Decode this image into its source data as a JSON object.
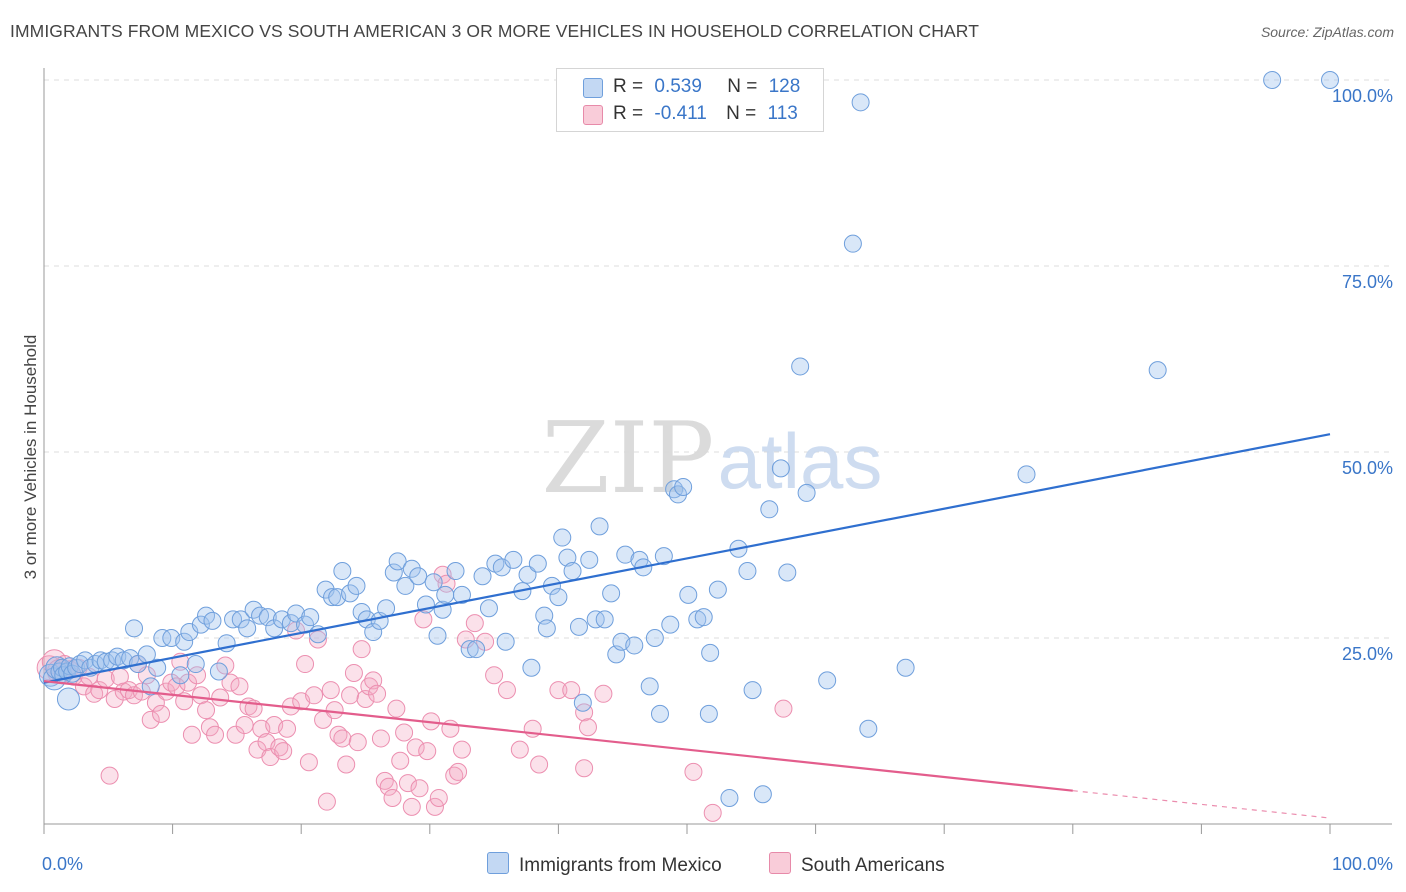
{
  "title": "IMMIGRANTS FROM MEXICO VS SOUTH AMERICAN 3 OR MORE VEHICLES IN HOUSEHOLD CORRELATION CHART",
  "source": "Source: ZipAtlas.com",
  "watermark": {
    "zip": "ZIP",
    "atlas": "atlas"
  },
  "colors": {
    "blue": "#3a76c8",
    "pink": "#e35d8c",
    "blue_fill": "#aac8ee",
    "pink_fill": "#f5b5c8"
  },
  "legend": {
    "rows": [
      {
        "r_label": "R =",
        "r_value": "0.539",
        "n_label": "N =",
        "n_value": "128"
      },
      {
        "r_label": "R =",
        "r_value": "-0.411",
        "n_label": "N =",
        "n_value": "113"
      }
    ]
  },
  "bottom_legend": [
    "Immigrants from Mexico",
    "South Americans"
  ],
  "chart_data": {
    "type": "scatter",
    "title": "IMMIGRANTS FROM MEXICO VS SOUTH AMERICAN 3 OR MORE VEHICLES IN HOUSEHOLD CORRELATION CHART",
    "xlabel": "",
    "ylabel": "3 or more Vehicles in Household",
    "xlim": [
      0,
      100
    ],
    "ylim": [
      0,
      102
    ],
    "x_tick_labels": [
      "0.0%",
      "100.0%"
    ],
    "y_ticks": [
      25,
      50,
      75,
      100
    ],
    "y_tick_labels": [
      "25.0%",
      "50.0%",
      "75.0%",
      "100.0%"
    ],
    "grid": "horizontal dashed",
    "legend_position": "top-center",
    "series": [
      {
        "name": "Immigrants from Mexico",
        "color": "#3a76c8",
        "r": 0.539,
        "n": 128,
        "trend": {
          "x": [
            0,
            100
          ],
          "y": [
            19.0,
            52.4
          ],
          "dash_from": null
        },
        "points": [
          [
            0.5,
            20.0
          ],
          [
            0.8,
            19.5
          ],
          [
            1.0,
            21.0
          ],
          [
            1.2,
            20.5
          ],
          [
            1.4,
            21.0
          ],
          [
            1.5,
            20.0
          ],
          [
            1.8,
            20.5
          ],
          [
            2.0,
            21.2
          ],
          [
            2.2,
            20.2
          ],
          [
            2.5,
            21.0
          ],
          [
            1.9,
            16.8
          ],
          [
            2.8,
            21.5
          ],
          [
            3.2,
            22.0
          ],
          [
            3.6,
            21.0
          ],
          [
            4.0,
            21.5
          ],
          [
            4.4,
            22.0
          ],
          [
            4.8,
            21.8
          ],
          [
            5.3,
            22.0
          ],
          [
            5.7,
            22.5
          ],
          [
            6.2,
            22.0
          ],
          [
            6.7,
            22.3
          ],
          [
            7.0,
            26.3
          ],
          [
            7.3,
            21.5
          ],
          [
            8.0,
            22.8
          ],
          [
            8.3,
            18.5
          ],
          [
            8.8,
            21.0
          ],
          [
            9.2,
            25.0
          ],
          [
            9.9,
            25.0
          ],
          [
            10.6,
            20.0
          ],
          [
            10.9,
            24.5
          ],
          [
            11.3,
            25.8
          ],
          [
            11.8,
            21.5
          ],
          [
            12.2,
            26.8
          ],
          [
            12.6,
            28.0
          ],
          [
            13.1,
            27.3
          ],
          [
            13.6,
            20.5
          ],
          [
            14.2,
            24.3
          ],
          [
            14.7,
            27.5
          ],
          [
            15.3,
            27.5
          ],
          [
            15.8,
            26.3
          ],
          [
            16.3,
            28.8
          ],
          [
            16.8,
            28.0
          ],
          [
            17.4,
            27.8
          ],
          [
            17.9,
            26.3
          ],
          [
            18.5,
            27.5
          ],
          [
            19.2,
            27.0
          ],
          [
            19.6,
            28.3
          ],
          [
            20.3,
            26.8
          ],
          [
            20.7,
            27.8
          ],
          [
            21.3,
            25.5
          ],
          [
            21.9,
            31.5
          ],
          [
            22.4,
            30.5
          ],
          [
            22.8,
            30.5
          ],
          [
            23.2,
            34.0
          ],
          [
            23.8,
            31.0
          ],
          [
            24.3,
            32.0
          ],
          [
            24.7,
            28.5
          ],
          [
            25.1,
            27.5
          ],
          [
            25.6,
            25.8
          ],
          [
            26.1,
            27.3
          ],
          [
            26.6,
            29.0
          ],
          [
            27.2,
            33.8
          ],
          [
            27.5,
            35.3
          ],
          [
            28.1,
            32.0
          ],
          [
            28.6,
            34.3
          ],
          [
            29.1,
            33.3
          ],
          [
            29.7,
            29.5
          ],
          [
            30.3,
            32.5
          ],
          [
            30.6,
            25.3
          ],
          [
            31.0,
            28.8
          ],
          [
            31.2,
            30.8
          ],
          [
            32.0,
            34.0
          ],
          [
            32.5,
            30.8
          ],
          [
            33.1,
            23.5
          ],
          [
            33.6,
            23.5
          ],
          [
            34.1,
            33.3
          ],
          [
            34.6,
            29.0
          ],
          [
            35.1,
            35.0
          ],
          [
            35.6,
            34.5
          ],
          [
            35.9,
            24.5
          ],
          [
            36.5,
            35.5
          ],
          [
            37.2,
            31.3
          ],
          [
            37.6,
            33.5
          ],
          [
            37.9,
            21.0
          ],
          [
            38.4,
            35.0
          ],
          [
            38.9,
            28.0
          ],
          [
            39.1,
            26.3
          ],
          [
            39.5,
            32.0
          ],
          [
            40.0,
            30.5
          ],
          [
            40.3,
            38.5
          ],
          [
            40.7,
            35.8
          ],
          [
            41.1,
            34.0
          ],
          [
            41.6,
            26.5
          ],
          [
            41.9,
            16.3
          ],
          [
            42.4,
            35.5
          ],
          [
            42.9,
            27.5
          ],
          [
            43.2,
            40.0
          ],
          [
            43.6,
            27.5
          ],
          [
            44.1,
            31.0
          ],
          [
            44.5,
            22.8
          ],
          [
            44.9,
            24.5
          ],
          [
            45.2,
            36.2
          ],
          [
            45.9,
            24.0
          ],
          [
            46.3,
            35.5
          ],
          [
            46.6,
            34.5
          ],
          [
            47.1,
            18.5
          ],
          [
            47.5,
            25.0
          ],
          [
            47.9,
            14.8
          ],
          [
            48.2,
            36.0
          ],
          [
            48.7,
            26.8
          ],
          [
            49.0,
            45.0
          ],
          [
            49.3,
            44.3
          ],
          [
            49.7,
            45.3
          ],
          [
            50.1,
            30.8
          ],
          [
            50.8,
            27.5
          ],
          [
            51.3,
            27.8
          ],
          [
            51.7,
            14.8
          ],
          [
            51.8,
            23.0
          ],
          [
            52.4,
            31.5
          ],
          [
            53.3,
            3.5
          ],
          [
            54.0,
            37.0
          ],
          [
            54.7,
            34.0
          ],
          [
            55.1,
            18.0
          ],
          [
            55.9,
            4.0
          ],
          [
            56.4,
            42.3
          ],
          [
            57.3,
            47.8
          ],
          [
            57.8,
            33.8
          ],
          [
            58.8,
            61.5
          ],
          [
            59.3,
            44.5
          ],
          [
            60.9,
            19.3
          ],
          [
            62.9,
            78.0
          ],
          [
            67.0,
            21.0
          ],
          [
            76.4,
            47.0
          ],
          [
            86.6,
            61.0
          ],
          [
            64.1,
            12.8
          ],
          [
            95.5,
            100.0
          ],
          [
            100.0,
            100.0
          ],
          [
            63.5,
            97.0
          ]
        ],
        "point_sizes_note": "first points near x≈0 are larger bubbles"
      },
      {
        "name": "South Americans",
        "color": "#e35d8c",
        "r": -0.411,
        "n": 113,
        "trend": {
          "x": [
            0,
            100
          ],
          "y": [
            19.2,
            0.8
          ],
          "dash_from": 80
        },
        "points": [
          [
            0.4,
            21.0
          ],
          [
            0.8,
            21.8
          ],
          [
            1.2,
            20.5
          ],
          [
            1.6,
            21.5
          ],
          [
            2.0,
            20.8
          ],
          [
            2.3,
            19.8
          ],
          [
            2.7,
            21.0
          ],
          [
            3.1,
            18.5
          ],
          [
            3.5,
            19.8
          ],
          [
            3.9,
            17.5
          ],
          [
            4.3,
            18.0
          ],
          [
            4.8,
            19.5
          ],
          [
            5.1,
            6.5
          ],
          [
            5.5,
            16.8
          ],
          [
            5.9,
            19.8
          ],
          [
            6.2,
            17.8
          ],
          [
            6.6,
            18.0
          ],
          [
            7.0,
            17.3
          ],
          [
            7.3,
            21.5
          ],
          [
            7.6,
            17.8
          ],
          [
            8.0,
            20.0
          ],
          [
            8.3,
            14.0
          ],
          [
            8.7,
            16.3
          ],
          [
            9.1,
            14.8
          ],
          [
            9.5,
            17.8
          ],
          [
            9.9,
            19.0
          ],
          [
            10.3,
            18.5
          ],
          [
            10.6,
            21.8
          ],
          [
            10.9,
            16.5
          ],
          [
            11.2,
            19.0
          ],
          [
            11.5,
            12.0
          ],
          [
            11.9,
            20.0
          ],
          [
            12.2,
            17.3
          ],
          [
            12.6,
            15.3
          ],
          [
            12.9,
            13.0
          ],
          [
            13.3,
            12.0
          ],
          [
            13.7,
            17.0
          ],
          [
            14.1,
            21.3
          ],
          [
            14.5,
            19.0
          ],
          [
            14.9,
            12.0
          ],
          [
            15.2,
            18.5
          ],
          [
            15.6,
            13.3
          ],
          [
            15.9,
            15.8
          ],
          [
            16.3,
            15.5
          ],
          [
            16.6,
            10.0
          ],
          [
            16.9,
            12.8
          ],
          [
            17.3,
            11.0
          ],
          [
            17.6,
            9.0
          ],
          [
            17.9,
            13.3
          ],
          [
            18.3,
            10.3
          ],
          [
            18.6,
            9.8
          ],
          [
            18.9,
            12.8
          ],
          [
            19.2,
            15.8
          ],
          [
            19.6,
            26.0
          ],
          [
            20.0,
            16.5
          ],
          [
            20.3,
            21.5
          ],
          [
            20.6,
            8.3
          ],
          [
            21.0,
            17.3
          ],
          [
            21.3,
            24.8
          ],
          [
            21.7,
            14.0
          ],
          [
            22.0,
            3.0
          ],
          [
            22.3,
            18.0
          ],
          [
            22.6,
            15.3
          ],
          [
            22.9,
            12.0
          ],
          [
            23.2,
            11.5
          ],
          [
            23.5,
            8.0
          ],
          [
            23.8,
            17.3
          ],
          [
            24.1,
            20.3
          ],
          [
            24.4,
            11.0
          ],
          [
            24.7,
            23.5
          ],
          [
            25.0,
            16.8
          ],
          [
            25.3,
            18.5
          ],
          [
            25.6,
            19.3
          ],
          [
            25.9,
            17.5
          ],
          [
            26.2,
            11.5
          ],
          [
            26.5,
            5.8
          ],
          [
            26.8,
            5.0
          ],
          [
            27.1,
            3.5
          ],
          [
            27.4,
            15.5
          ],
          [
            27.7,
            8.5
          ],
          [
            28.0,
            12.3
          ],
          [
            28.3,
            5.5
          ],
          [
            28.6,
            2.3
          ],
          [
            28.9,
            10.3
          ],
          [
            29.2,
            4.8
          ],
          [
            29.5,
            27.5
          ],
          [
            29.8,
            9.8
          ],
          [
            30.1,
            13.8
          ],
          [
            30.4,
            2.3
          ],
          [
            30.7,
            3.5
          ],
          [
            31.0,
            33.5
          ],
          [
            31.3,
            32.3
          ],
          [
            31.6,
            12.8
          ],
          [
            31.9,
            6.5
          ],
          [
            32.2,
            7.0
          ],
          [
            32.5,
            10.0
          ],
          [
            32.8,
            24.8
          ],
          [
            33.5,
            27.0
          ],
          [
            34.3,
            24.5
          ],
          [
            36.0,
            18.0
          ],
          [
            37.0,
            10.0
          ],
          [
            38.0,
            12.8
          ],
          [
            38.5,
            8.0
          ],
          [
            40.0,
            18.0
          ],
          [
            42.0,
            7.5
          ],
          [
            42.0,
            15.0
          ],
          [
            42.3,
            13.0
          ],
          [
            50.5,
            7.0
          ],
          [
            52.0,
            1.5
          ],
          [
            57.5,
            15.5
          ],
          [
            43.5,
            17.5
          ],
          [
            41.0,
            18.0
          ],
          [
            35.0,
            20.0
          ]
        ]
      }
    ]
  }
}
